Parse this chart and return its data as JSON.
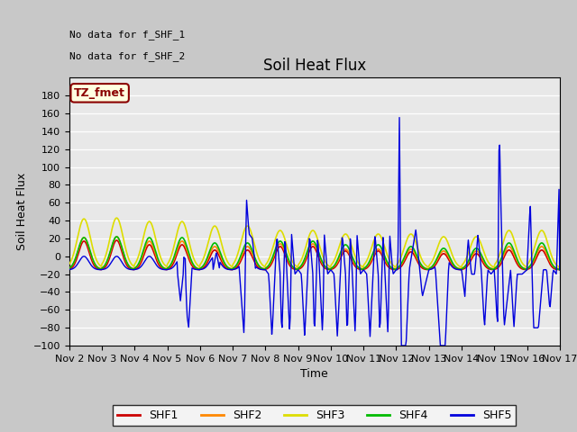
{
  "title": "Soil Heat Flux",
  "ylabel": "Soil Heat Flux",
  "xlabel": "Time",
  "annotation_lines": [
    "No data for f_SHF_1",
    "No data for f_SHF_2"
  ],
  "box_label": "TZ_fmet",
  "ylim": [
    -100,
    200
  ],
  "yticks": [
    -100,
    -80,
    -60,
    -40,
    -20,
    0,
    20,
    40,
    60,
    80,
    100,
    120,
    140,
    160,
    180
  ],
  "xtick_labels": [
    "Nov 2",
    "Nov 3",
    "Nov 4",
    "Nov 5",
    "Nov 6",
    "Nov 7",
    "Nov 8",
    "Nov 9",
    "Nov 10",
    "Nov 11",
    "Nov 12",
    "Nov 13",
    "Nov 14",
    "Nov 15",
    "Nov 16",
    "Nov 17"
  ],
  "colors": {
    "SHF1": "#cc0000",
    "SHF2": "#ff8800",
    "SHF3": "#dddd00",
    "SHF4": "#00bb00",
    "SHF5": "#0000dd"
  },
  "bg_color": "#e8e8e8",
  "fig_bg": "#c8c8c8",
  "grid_color": "#ffffff",
  "title_fontsize": 12,
  "axis_fontsize": 9,
  "tick_fontsize": 8
}
